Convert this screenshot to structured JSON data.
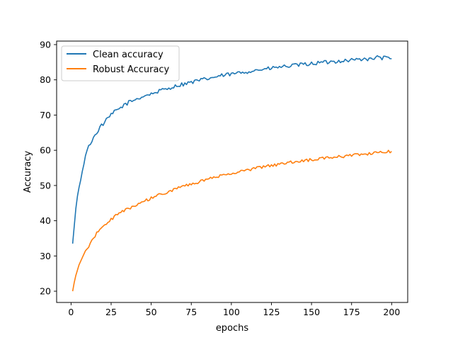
{
  "chart_data": {
    "type": "line",
    "title": "",
    "xlabel": "epochs",
    "ylabel": "Accuracy",
    "xlim": [
      -9,
      210
    ],
    "ylim": [
      16.8,
      91
    ],
    "xticks": [
      0,
      25,
      50,
      75,
      100,
      125,
      150,
      175,
      200
    ],
    "yticks": [
      20,
      30,
      40,
      50,
      60,
      70,
      80,
      90
    ],
    "grid": false,
    "legend": "top-left",
    "colors": {
      "Clean accuracy": "#1f77b4",
      "Robust Accuracy": "#ff7f0e"
    },
    "series": [
      {
        "name": "Clean accuracy",
        "x": [
          1,
          2,
          3,
          4,
          5,
          6,
          7,
          8,
          9,
          10,
          12,
          14,
          16,
          18,
          20,
          22,
          24,
          26,
          28,
          30,
          33,
          36,
          39,
          42,
          45,
          48,
          50,
          52,
          55,
          58,
          60,
          62,
          65,
          68,
          70,
          73,
          76,
          79,
          82,
          85,
          88,
          91,
          94,
          97,
          100,
          104,
          108,
          112,
          116,
          120,
          124,
          128,
          132,
          136,
          140,
          144,
          148,
          152,
          156,
          160,
          164,
          168,
          172,
          176,
          180,
          184,
          186,
          188,
          190,
          192,
          194,
          196,
          198,
          200
        ],
        "y": [
          33.5,
          38.5,
          43.5,
          47,
          49.5,
          51.5,
          54,
          56,
          58.5,
          60,
          62,
          63.5,
          65,
          66.5,
          67.5,
          68.5,
          69.5,
          70.5,
          71.2,
          71.8,
          72.8,
          73.6,
          74.2,
          74.8,
          75.3,
          75.8,
          76,
          76.3,
          76.8,
          77.2,
          77.5,
          77.8,
          78.2,
          78.6,
          78.8,
          79.1,
          79.4,
          79.7,
          80,
          80.3,
          80.6,
          80.9,
          81.2,
          81.4,
          81.6,
          81.9,
          82.2,
          82.5,
          82.8,
          83,
          83.2,
          83.5,
          83.7,
          83.9,
          84.1,
          84.3,
          84.5,
          84.7,
          84.9,
          85,
          85.2,
          85.4,
          85.5,
          85.7,
          85.8,
          86.1,
          85.7,
          86,
          86.3,
          86.4,
          86.2,
          86.3,
          86.1,
          86
        ],
        "noise": 0.55
      },
      {
        "name": "Robust Accuracy",
        "x": [
          1,
          2,
          3,
          4,
          5,
          6,
          7,
          8,
          9,
          10,
          12,
          14,
          16,
          18,
          20,
          22,
          24,
          26,
          28,
          30,
          33,
          36,
          39,
          42,
          45,
          48,
          50,
          52,
          55,
          58,
          60,
          62,
          65,
          68,
          70,
          73,
          76,
          79,
          82,
          85,
          88,
          91,
          94,
          97,
          100,
          104,
          108,
          112,
          116,
          120,
          124,
          128,
          132,
          136,
          140,
          144,
          148,
          152,
          156,
          160,
          164,
          168,
          172,
          176,
          180,
          184,
          186,
          188,
          190,
          192,
          194,
          196,
          198,
          200
        ],
        "y": [
          20,
          22.5,
          24.5,
          26,
          27.5,
          28.5,
          29.5,
          30.5,
          31.5,
          32,
          33.5,
          35,
          36.5,
          37.5,
          38.5,
          39.3,
          40,
          40.7,
          41.4,
          42,
          42.8,
          43.5,
          44.2,
          44.8,
          45.4,
          46,
          46.4,
          46.7,
          47.3,
          47.8,
          48.2,
          48.5,
          49,
          49.4,
          49.7,
          50.1,
          50.5,
          50.9,
          51.3,
          51.7,
          52.1,
          52.5,
          52.8,
          53.1,
          53.4,
          53.8,
          54.2,
          54.6,
          55,
          55.3,
          55.6,
          55.9,
          56.2,
          56.5,
          56.8,
          57,
          57.2,
          57.4,
          57.6,
          57.8,
          58,
          58.2,
          58.4,
          58.6,
          58.8,
          58.9,
          59,
          59.1,
          59.2,
          59.3,
          59.4,
          59.5,
          59.6,
          59.7
        ],
        "noise": 0.4
      }
    ]
  }
}
